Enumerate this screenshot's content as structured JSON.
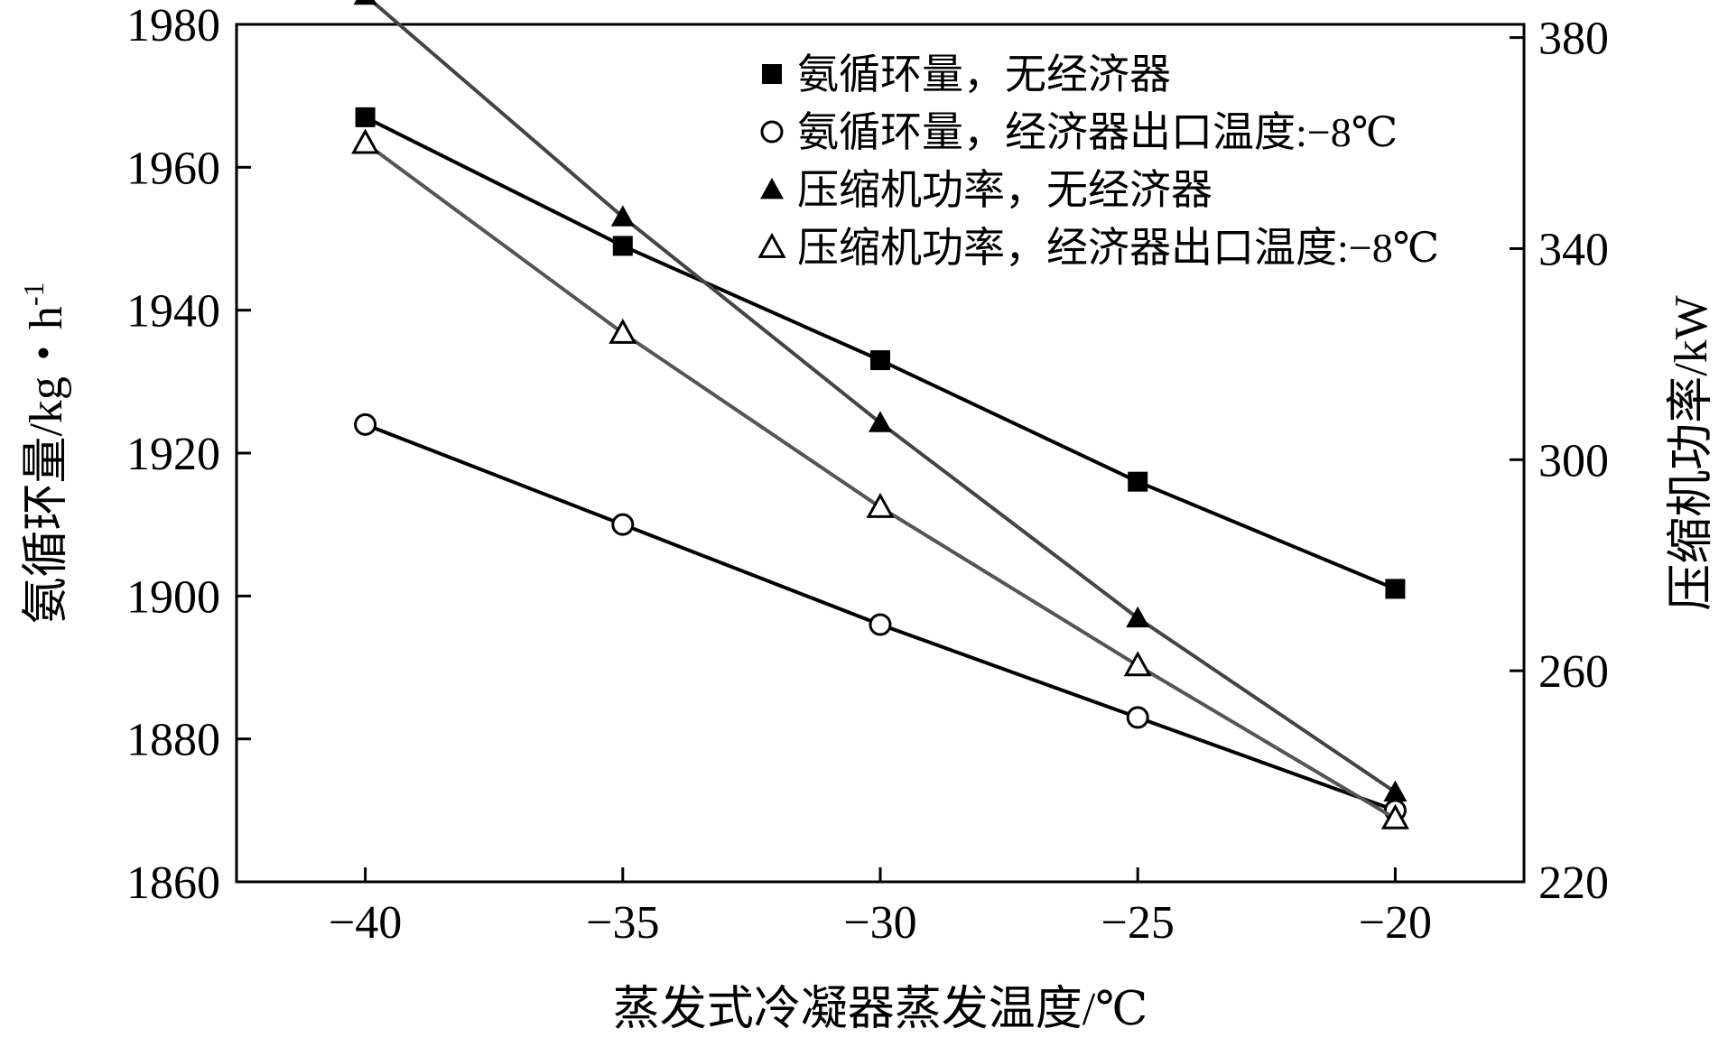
{
  "chart_data": {
    "type": "line",
    "xlabel": "蒸发式冷凝器蒸发温度/℃",
    "ylabel_left": "氨循环量/kg・h",
    "ylabel_left_sup": "-1",
    "ylabel_right": "压缩机功率/kW",
    "x_ticks": [
      "−40",
      "−35",
      "−30",
      "−25",
      "−20"
    ],
    "y_left_ticks": [
      "1860",
      "1880",
      "1900",
      "1920",
      "1940",
      "1960",
      "1980"
    ],
    "y_right_ticks": [
      "220",
      "260",
      "300",
      "340",
      "380"
    ],
    "xlim": [
      -42.5,
      -17.5
    ],
    "ylim_left": [
      1860,
      1980
    ],
    "ylim_right": [
      220,
      382.5
    ],
    "x": [
      -40,
      -35,
      -30,
      -25,
      -20
    ],
    "grid": false,
    "legend_position": "top-right",
    "series": [
      {
        "name": "氨循环量，无经济器",
        "axis": "left",
        "marker": "filled-square",
        "color": "#000000",
        "values": [
          1967,
          1949,
          1933,
          1916,
          1901
        ]
      },
      {
        "name": "氨循环量，经济器出口温度:−8℃",
        "axis": "left",
        "marker": "open-circle",
        "color": "#000000",
        "values": [
          1924,
          1910,
          1896,
          1883,
          1870
        ]
      },
      {
        "name": "压缩机功率，无经济器",
        "axis": "right",
        "marker": "filled-triangle",
        "color": "#444444",
        "values": [
          388,
          346,
          307,
          270,
          237
        ]
      },
      {
        "name": "压缩机功率，经济器出口温度:−8℃",
        "axis": "right",
        "marker": "open-triangle",
        "color": "#555555",
        "values": [
          360,
          324,
          291,
          261,
          232
        ]
      }
    ]
  }
}
